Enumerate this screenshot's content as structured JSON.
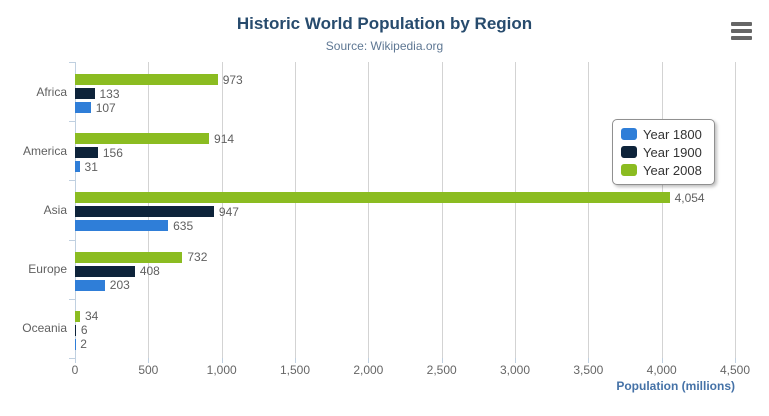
{
  "chart_data": {
    "type": "bar",
    "orientation": "horizontal",
    "title": "Historic World Population by Region",
    "subtitle": "Source: Wikipedia.org",
    "xlabel": "Population (millions)",
    "categories": [
      "Africa",
      "America",
      "Asia",
      "Europe",
      "Oceania"
    ],
    "series": [
      {
        "name": "Year 1800",
        "color": "#2f7ed8",
        "values": [
          107,
          31,
          635,
          203,
          2
        ]
      },
      {
        "name": "Year 1900",
        "color": "#0d233a",
        "values": [
          133,
          156,
          947,
          408,
          6
        ]
      },
      {
        "name": "Year 2008",
        "color": "#8bbc21",
        "values": [
          973,
          914,
          4054,
          732,
          34
        ]
      }
    ],
    "bar_order_top_to_bottom": [
      "Year 2008",
      "Year 1900",
      "Year 1800"
    ],
    "xlim": [
      0,
      4500
    ],
    "xticks": [
      0,
      500,
      1000,
      1500,
      2000,
      2500,
      3000,
      3500,
      4000,
      4500
    ],
    "grid": "vertical",
    "legend_position": "right-upper",
    "colors": {
      "title": "#274b6d",
      "subtitle": "#5e7793",
      "axis_title": "#4572a7",
      "labels": "#606060",
      "gridline": "#d3d3d3",
      "axis_line": "#c0d0e0",
      "menu_icon": "#666666"
    }
  },
  "icons": {
    "context_menu": "hamburger-bars"
  }
}
